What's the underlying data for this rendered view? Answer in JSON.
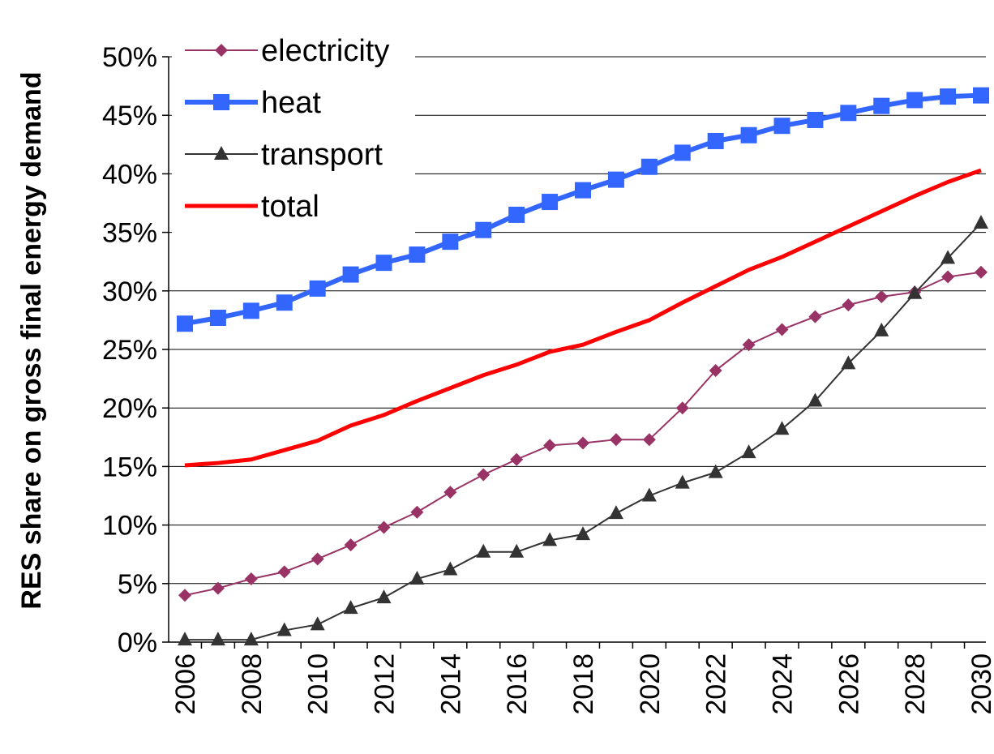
{
  "chart_data": {
    "type": "line",
    "title": "",
    "xlabel": "",
    "ylabel": "RES share on gross final energy demand",
    "x": [
      2006,
      2007,
      2008,
      2009,
      2010,
      2011,
      2012,
      2013,
      2014,
      2015,
      2016,
      2017,
      2018,
      2019,
      2020,
      2021,
      2022,
      2023,
      2024,
      2025,
      2026,
      2027,
      2028,
      2029,
      2030
    ],
    "x_tick_labels": [
      "2006",
      "2008",
      "2010",
      "2012",
      "2014",
      "2016",
      "2018",
      "2020",
      "2022",
      "2024",
      "2026",
      "2028",
      "2030"
    ],
    "y_tick_labels": [
      "0%",
      "5%",
      "10%",
      "15%",
      "20%",
      "25%",
      "30%",
      "35%",
      "40%",
      "45%",
      "50%"
    ],
    "ylim": [
      0,
      50
    ],
    "y_unit": "%",
    "grid": "horizontal",
    "legend_position": "top-left",
    "series": [
      {
        "name": "electricity",
        "color": "#993366",
        "marker": "diamond",
        "values": [
          4.0,
          4.6,
          5.4,
          6.0,
          7.1,
          8.3,
          9.8,
          11.1,
          12.8,
          14.3,
          15.6,
          16.8,
          17.0,
          17.3,
          17.3,
          20.0,
          23.2,
          25.4,
          26.7,
          27.8,
          28.8,
          29.5,
          29.9,
          31.2,
          31.6
        ]
      },
      {
        "name": "heat",
        "color": "#3366ff",
        "marker": "square",
        "values": [
          27.2,
          27.7,
          28.3,
          29.0,
          30.2,
          31.4,
          32.4,
          33.1,
          34.2,
          35.2,
          36.5,
          37.6,
          38.6,
          39.5,
          40.6,
          41.8,
          42.8,
          43.3,
          44.1,
          44.6,
          45.2,
          45.8,
          46.3,
          46.6,
          46.7
        ]
      },
      {
        "name": "transport",
        "color": "#333333",
        "marker": "triangle",
        "values": [
          0.2,
          0.2,
          0.2,
          1.0,
          1.5,
          2.9,
          3.8,
          5.4,
          6.2,
          7.7,
          7.7,
          8.7,
          9.2,
          11.0,
          12.5,
          13.6,
          14.5,
          16.2,
          18.2,
          20.6,
          23.8,
          26.6,
          29.8,
          32.8,
          35.8
        ]
      },
      {
        "name": "total",
        "color": "#ff0000",
        "marker": "none",
        "values": [
          15.1,
          15.3,
          15.6,
          16.4,
          17.2,
          18.5,
          19.4,
          20.6,
          21.7,
          22.8,
          23.7,
          24.8,
          25.4,
          26.5,
          27.5,
          29.0,
          30.4,
          31.8,
          32.9,
          34.2,
          35.5,
          36.8,
          38.1,
          39.3,
          40.3
        ]
      }
    ]
  }
}
